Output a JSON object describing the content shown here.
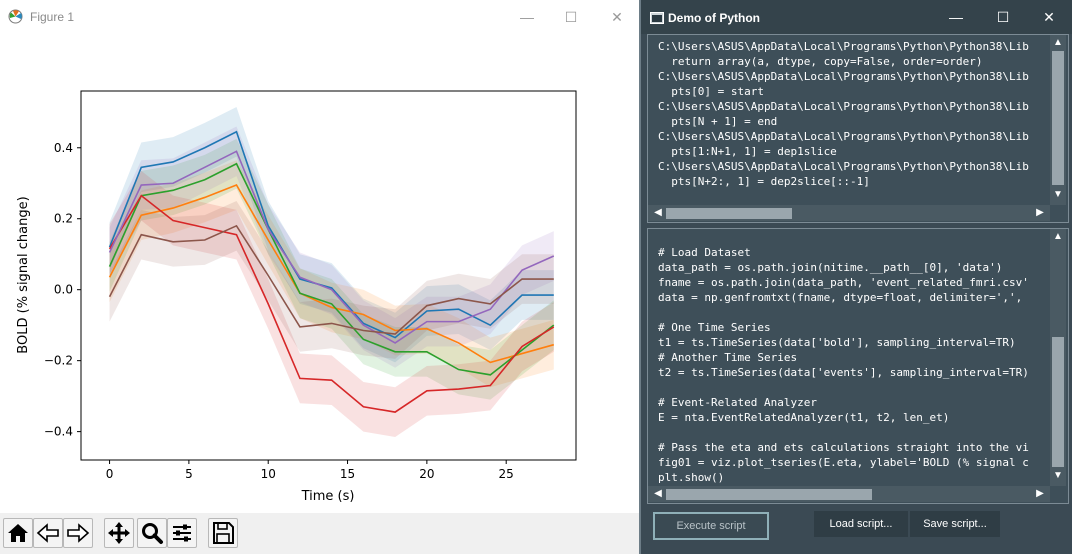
{
  "figure_window": {
    "title": "Figure 1",
    "controls": [
      "—",
      "☐",
      "✕"
    ]
  },
  "toolbar": {
    "icons": [
      "home-icon",
      "back-icon",
      "forward-icon",
      "pan-icon",
      "zoom-icon",
      "configure-subplots-icon",
      "save-icon"
    ]
  },
  "console_window": {
    "title": "Demo of Python",
    "controls": [
      "—",
      "☐",
      "✕"
    ],
    "output_lines": [
      "C:\\Users\\ASUS\\AppData\\Local\\Programs\\Python\\Python38\\Lib",
      "  return array(a, dtype, copy=False, order=order)",
      "C:\\Users\\ASUS\\AppData\\Local\\Programs\\Python\\Python38\\Lib",
      "  pts[0] = start",
      "C:\\Users\\ASUS\\AppData\\Local\\Programs\\Python\\Python38\\Lib",
      "  pts[N + 1] = end",
      "C:\\Users\\ASUS\\AppData\\Local\\Programs\\Python\\Python38\\Lib",
      "  pts[1:N+1, 1] = dep1slice",
      "C:\\Users\\ASUS\\AppData\\Local\\Programs\\Python\\Python38\\Lib",
      "  pts[N+2:, 1] = dep2slice[::-1]"
    ],
    "script_lines": [
      "# Load Dataset",
      "data_path = os.path.join(nitime.__path__[0], 'data')",
      "fname = os.path.join(data_path, 'event_related_fmri.csv'",
      "data = np.genfromtxt(fname, dtype=float, delimiter=',',",
      "",
      "# One Time Series",
      "t1 = ts.TimeSeries(data['bold'], sampling_interval=TR)",
      "# Another Time Series",
      "t2 = ts.TimeSeries(data['events'], sampling_interval=TR)",
      "",
      "# Event-Related Analyzer",
      "E = nta.EventRelatedAnalyzer(t1, t2, len_et)",
      "",
      "# Pass the eta and ets calculations straight into the vi",
      "fig01 = viz.plot_tseries(E.eta, ylabel='BOLD (% signal c",
      "plt.show()"
    ],
    "buttons": {
      "execute": "Execute script",
      "load": "Load script...",
      "save": "Save script..."
    }
  },
  "chart_data": {
    "type": "line",
    "xlabel": "Time (s)",
    "ylabel": "BOLD (% signal change)",
    "xlim": [
      -1.8,
      29.4
    ],
    "ylim": [
      -0.48,
      0.56
    ],
    "xticks": [
      0,
      5,
      10,
      15,
      20,
      25
    ],
    "yticks": [
      -0.4,
      -0.2,
      0.0,
      0.2,
      0.4
    ],
    "xtick_labels": [
      "0",
      "5",
      "10",
      "15",
      "20",
      "25"
    ],
    "ytick_labels": [
      "−0.4",
      "−0.2",
      "0.0",
      "0.2",
      "0.4"
    ],
    "x": [
      0,
      2,
      4,
      6,
      8,
      10,
      12,
      14,
      16,
      18,
      20,
      22,
      24,
      26,
      28
    ],
    "band_halfwidth": 0.07,
    "series": [
      {
        "color": "#1f77b4",
        "values": [
          0.12,
          0.345,
          0.36,
          0.4,
          0.445,
          0.18,
          0.03,
          0.005,
          -0.095,
          -0.135,
          -0.06,
          -0.055,
          -0.1,
          -0.015,
          -0.015
        ]
      },
      {
        "color": "#ff7f0e",
        "values": [
          0.035,
          0.21,
          0.23,
          0.26,
          0.295,
          0.14,
          -0.01,
          -0.05,
          -0.07,
          -0.115,
          -0.11,
          -0.15,
          -0.205,
          -0.18,
          -0.155
        ]
      },
      {
        "color": "#2ca02c",
        "values": [
          0.065,
          0.265,
          0.28,
          0.31,
          0.355,
          0.17,
          -0.01,
          -0.04,
          -0.14,
          -0.175,
          -0.175,
          -0.225,
          -0.24,
          -0.17,
          -0.1
        ]
      },
      {
        "color": "#d62728",
        "values": [
          0.115,
          0.265,
          0.195,
          0.175,
          0.155,
          -0.04,
          -0.25,
          -0.255,
          -0.33,
          -0.345,
          -0.285,
          -0.28,
          -0.27,
          -0.16,
          -0.105
        ]
      },
      {
        "color": "#9467bd",
        "values": [
          0.105,
          0.295,
          0.3,
          0.345,
          0.39,
          0.17,
          0.035,
          0.0,
          -0.1,
          -0.15,
          -0.09,
          -0.09,
          -0.055,
          0.055,
          0.095
        ]
      },
      {
        "color": "#8c564b",
        "values": [
          -0.02,
          0.155,
          0.135,
          0.14,
          0.18,
          0.04,
          -0.105,
          -0.095,
          -0.115,
          -0.125,
          -0.045,
          -0.025,
          -0.04,
          0.03,
          0.03
        ]
      }
    ]
  }
}
